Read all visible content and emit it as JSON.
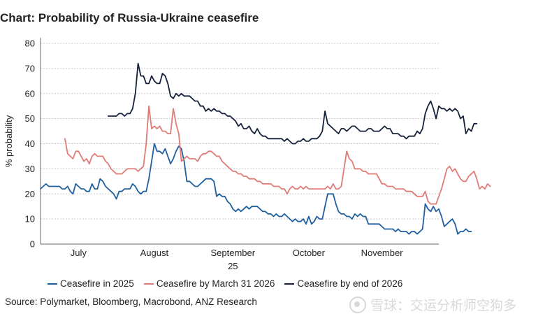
{
  "title": "Chart: Probability of Russia-Ukraine ceasefire",
  "source": "Source: Polymarket, Bloomberg, Macrobond, ANZ Research",
  "watermark": "雪球：交运分析师空狗多",
  "legend": [
    {
      "label": "Ceasefire in 2025",
      "color": "#1f5fa0"
    },
    {
      "label": "Ceasefire by March 31 2026",
      "color": "#e07b75"
    },
    {
      "label": "Ceasefire by end of 2026",
      "color": "#16213a"
    }
  ],
  "chart_data": {
    "type": "line",
    "title": "Chart: Probability of Russia-Ukraine ceasefire",
    "xlabel": "",
    "ylabel": "% probability",
    "ylim": [
      0,
      80
    ],
    "yticks": [
      0,
      10,
      20,
      30,
      40,
      50,
      60,
      70,
      80
    ],
    "xlim": [
      0,
      147
    ],
    "x_ticks": [
      {
        "label": "July",
        "x": 14
      },
      {
        "label": "August",
        "x": 42
      },
      {
        "label": "September",
        "sublabel": "25",
        "x": 71
      },
      {
        "label": "October",
        "x": 99
      },
      {
        "label": "November",
        "x": 126
      }
    ],
    "grid": true,
    "series": [
      {
        "name": "Ceasefire in 2025",
        "color": "#1f5fa0",
        "x_start": 0,
        "values": [
          22,
          23,
          24,
          23,
          23,
          23,
          23,
          23,
          22,
          22,
          23,
          21,
          20,
          24,
          23,
          22,
          22,
          21,
          21,
          24,
          22,
          22,
          26,
          25,
          23,
          22,
          21,
          20,
          18,
          21,
          21,
          22,
          22,
          22,
          24,
          23,
          21,
          20,
          21,
          21,
          26,
          33,
          40,
          37,
          37,
          36,
          38,
          35,
          32,
          34,
          37,
          39,
          38,
          33,
          25,
          25,
          24,
          23,
          23,
          24,
          25,
          26,
          26,
          26,
          25,
          19,
          20,
          19,
          19,
          17,
          16,
          14,
          13,
          14,
          13,
          14,
          15,
          14,
          15,
          15,
          15,
          14,
          13,
          13,
          12,
          12,
          11,
          12,
          11,
          11,
          12,
          11,
          10,
          9,
          10,
          9,
          9,
          10,
          8,
          11,
          8,
          9,
          11,
          10,
          10,
          15,
          20,
          20,
          20,
          16,
          13,
          12,
          12,
          11,
          11,
          10,
          12,
          11,
          12,
          11,
          11,
          8,
          8,
          8,
          8,
          8,
          7,
          6,
          6,
          6,
          6,
          5,
          6,
          5,
          5,
          5,
          4,
          5,
          5,
          4,
          5,
          6,
          16,
          14,
          13,
          15,
          13,
          14,
          11,
          7,
          8,
          9,
          10,
          8,
          4,
          5,
          5,
          6,
          5,
          5
        ]
      },
      {
        "name": "Ceasefire by March 31 2026",
        "color": "#e07b75",
        "x_start": 9,
        "values": [
          42,
          36,
          35,
          34,
          37,
          37,
          35,
          33,
          34,
          32,
          35,
          36,
          35,
          35,
          35,
          33,
          32,
          30,
          29,
          28,
          28,
          28,
          29,
          30,
          30,
          30,
          30,
          29,
          30,
          31,
          40,
          55,
          46,
          47,
          46,
          47,
          45,
          45,
          44,
          44,
          54,
          48,
          44,
          33,
          34,
          35,
          34,
          34,
          34,
          33,
          35,
          36,
          36,
          37,
          37,
          36,
          35,
          35,
          33,
          32,
          31,
          30,
          29,
          29,
          28,
          28,
          27,
          27,
          26,
          26,
          26,
          25,
          25,
          24,
          24,
          24,
          24,
          23,
          23,
          23,
          22,
          22,
          20,
          22,
          23,
          22,
          22,
          23,
          22,
          23,
          22,
          22,
          22,
          22,
          22,
          22,
          22,
          23,
          22,
          24,
          22,
          22,
          23,
          30,
          37,
          34,
          33,
          30,
          30,
          30,
          29,
          29,
          28,
          28,
          28,
          28,
          26,
          24,
          24,
          23,
          23,
          23,
          22,
          22,
          22,
          22,
          21,
          21,
          21,
          20,
          19,
          19,
          19,
          21,
          17,
          16,
          16,
          16,
          19,
          22,
          26,
          30,
          31,
          29,
          30,
          28,
          26,
          25,
          25,
          27,
          28,
          29,
          26,
          22,
          23,
          22,
          24,
          23
        ]
      },
      {
        "name": "Ceasefire by end of 2026",
        "color": "#16213a",
        "x_start": 25,
        "values": [
          51,
          51,
          51,
          51,
          52,
          52,
          51,
          52,
          52,
          54,
          60,
          72,
          67,
          67,
          64,
          64,
          67,
          65,
          64,
          64,
          68,
          67,
          64,
          59,
          58,
          60,
          59,
          60,
          59,
          59,
          59,
          58,
          57,
          57,
          55,
          55,
          53,
          54,
          53,
          54,
          53,
          53,
          52,
          52,
          51,
          51,
          50,
          49,
          47,
          48,
          46,
          46,
          47,
          45,
          44,
          46,
          44,
          43,
          43,
          42,
          42,
          42,
          42,
          42,
          42,
          41,
          42,
          41,
          40,
          40,
          41,
          41,
          42,
          41,
          41,
          42,
          42,
          42,
          43,
          45,
          53,
          48,
          47,
          46,
          45,
          44,
          46,
          46,
          45,
          46,
          47,
          47,
          46,
          45,
          45,
          45,
          46,
          46,
          45,
          45,
          45,
          46,
          47,
          46,
          46,
          44,
          44,
          44,
          43,
          43,
          42,
          43,
          43,
          43,
          45,
          44,
          46,
          52,
          55,
          57,
          54,
          50,
          55,
          54,
          54,
          53,
          54,
          53,
          54,
          53,
          50,
          51,
          44,
          46,
          45,
          48,
          48
        ]
      }
    ]
  }
}
